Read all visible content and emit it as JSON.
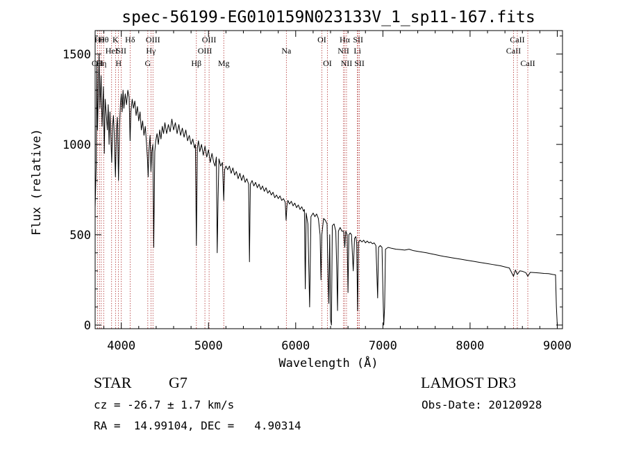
{
  "chart_data": {
    "type": "line",
    "title": "spec-56199-EG010159N023133V_1_sp11-167.fits",
    "xlabel": "Wavelength (Å)",
    "ylabel": "Flux (relative)",
    "xlim": [
      3700,
      9060
    ],
    "ylim": [
      -20,
      1630
    ],
    "xticks": [
      {
        "value": 4000,
        "label": "4000"
      },
      {
        "value": 5000,
        "label": "5000"
      },
      {
        "value": 6000,
        "label": "6000"
      },
      {
        "value": 7000,
        "label": "7000"
      },
      {
        "value": 8000,
        "label": "8000"
      },
      {
        "value": 9000,
        "label": "9000"
      }
    ],
    "yticks": [
      {
        "value": 0,
        "label": "0"
      },
      {
        "value": 500,
        "label": "500"
      },
      {
        "value": 1000,
        "label": "1000"
      },
      {
        "value": 1500,
        "label": "1500"
      }
    ],
    "series": [
      {
        "name": "spectrum",
        "color": "#000000",
        "points": [
          [
            3700,
            650
          ],
          [
            3712,
            880
          ],
          [
            3720,
            1450
          ],
          [
            3727,
            1080
          ],
          [
            3735,
            1250
          ],
          [
            3745,
            1500
          ],
          [
            3755,
            1200
          ],
          [
            3768,
            1380
          ],
          [
            3780,
            1100
          ],
          [
            3795,
            1320
          ],
          [
            3805,
            950
          ],
          [
            3815,
            1250
          ],
          [
            3830,
            1150
          ],
          [
            3840,
            1080
          ],
          [
            3850,
            1220
          ],
          [
            3860,
            1000
          ],
          [
            3870,
            1180
          ],
          [
            3880,
            1050
          ],
          [
            3890,
            900
          ],
          [
            3900,
            1100
          ],
          [
            3910,
            1160
          ],
          [
            3920,
            1050
          ],
          [
            3933,
            820
          ],
          [
            3945,
            1080
          ],
          [
            3955,
            1150
          ],
          [
            3968,
            800
          ],
          [
            3980,
            1100
          ],
          [
            3990,
            1220
          ],
          [
            4000,
            1280
          ],
          [
            4010,
            1180
          ],
          [
            4020,
            1300
          ],
          [
            4030,
            1200
          ],
          [
            4045,
            1280
          ],
          [
            4060,
            1220
          ],
          [
            4075,
            1300
          ],
          [
            4090,
            1260
          ],
          [
            4101,
            1020
          ],
          [
            4110,
            1180
          ],
          [
            4125,
            1250
          ],
          [
            4140,
            1200
          ],
          [
            4155,
            1240
          ],
          [
            4170,
            1160
          ],
          [
            4185,
            1210
          ],
          [
            4200,
            1130
          ],
          [
            4215,
            1180
          ],
          [
            4230,
            1080
          ],
          [
            4245,
            1130
          ],
          [
            4260,
            1050
          ],
          [
            4275,
            1100
          ],
          [
            4290,
            1000
          ],
          [
            4300,
            920
          ],
          [
            4308,
            820
          ],
          [
            4316,
            960
          ],
          [
            4330,
            1050
          ],
          [
            4340,
            850
          ],
          [
            4350,
            960
          ],
          [
            4362,
            1000
          ],
          [
            4372,
            430
          ],
          [
            4384,
            960
          ],
          [
            4395,
            1020
          ],
          [
            4410,
            1060
          ],
          [
            4425,
            1000
          ],
          [
            4440,
            1080
          ],
          [
            4455,
            1030
          ],
          [
            4470,
            1100
          ],
          [
            4485,
            1060
          ],
          [
            4500,
            1120
          ],
          [
            4520,
            1060
          ],
          [
            4540,
            1110
          ],
          [
            4560,
            1070
          ],
          [
            4580,
            1140
          ],
          [
            4600,
            1080
          ],
          [
            4620,
            1120
          ],
          [
            4640,
            1060
          ],
          [
            4660,
            1110
          ],
          [
            4680,
            1050
          ],
          [
            4700,
            1090
          ],
          [
            4720,
            1040
          ],
          [
            4740,
            1080
          ],
          [
            4760,
            1020
          ],
          [
            4780,
            1050
          ],
          [
            4800,
            1000
          ],
          [
            4820,
            1030
          ],
          [
            4840,
            980
          ],
          [
            4850,
            1000
          ],
          [
            4861,
            440
          ],
          [
            4872,
            980
          ],
          [
            4885,
            1020
          ],
          [
            4900,
            960
          ],
          [
            4920,
            1000
          ],
          [
            4940,
            940
          ],
          [
            4960,
            990
          ],
          [
            4980,
            930
          ],
          [
            5000,
            970
          ],
          [
            5020,
            900
          ],
          [
            5040,
            950
          ],
          [
            5060,
            900
          ],
          [
            5075,
            880
          ],
          [
            5090,
            930
          ],
          [
            5100,
            400
          ],
          [
            5110,
            700
          ],
          [
            5120,
            920
          ],
          [
            5140,
            880
          ],
          [
            5160,
            900
          ],
          [
            5175,
            690
          ],
          [
            5185,
            860
          ],
          [
            5200,
            880
          ],
          [
            5220,
            860
          ],
          [
            5240,
            880
          ],
          [
            5260,
            840
          ],
          [
            5280,
            870
          ],
          [
            5300,
            830
          ],
          [
            5320,
            850
          ],
          [
            5340,
            810
          ],
          [
            5360,
            840
          ],
          [
            5380,
            800
          ],
          [
            5400,
            830
          ],
          [
            5420,
            790
          ],
          [
            5440,
            810
          ],
          [
            5460,
            780
          ],
          [
            5470,
            350
          ],
          [
            5480,
            780
          ],
          [
            5500,
            800
          ],
          [
            5520,
            770
          ],
          [
            5540,
            790
          ],
          [
            5560,
            760
          ],
          [
            5580,
            780
          ],
          [
            5600,
            750
          ],
          [
            5620,
            770
          ],
          [
            5640,
            740
          ],
          [
            5660,
            760
          ],
          [
            5680,
            730
          ],
          [
            5700,
            745
          ],
          [
            5720,
            720
          ],
          [
            5740,
            735
          ],
          [
            5760,
            705
          ],
          [
            5780,
            720
          ],
          [
            5800,
            700
          ],
          [
            5820,
            715
          ],
          [
            5840,
            690
          ],
          [
            5860,
            700
          ],
          [
            5880,
            680
          ],
          [
            5890,
            580
          ],
          [
            5900,
            660
          ],
          [
            5910,
            690
          ],
          [
            5930,
            670
          ],
          [
            5950,
            685
          ],
          [
            5970,
            660
          ],
          [
            5990,
            675
          ],
          [
            6010,
            650
          ],
          [
            6030,
            665
          ],
          [
            6050,
            640
          ],
          [
            6070,
            655
          ],
          [
            6090,
            630
          ],
          [
            6100,
            640
          ],
          [
            6110,
            200
          ],
          [
            6120,
            620
          ],
          [
            6140,
            560
          ],
          [
            6160,
            100
          ],
          [
            6175,
            600
          ],
          [
            6200,
            620
          ],
          [
            6220,
            600
          ],
          [
            6240,
            615
          ],
          [
            6260,
            590
          ],
          [
            6280,
            500
          ],
          [
            6290,
            250
          ],
          [
            6300,
            500
          ],
          [
            6320,
            590
          ],
          [
            6340,
            580
          ],
          [
            6360,
            560
          ],
          [
            6370,
            280
          ],
          [
            6380,
            120
          ],
          [
            6390,
            500
          ],
          [
            6400,
            30
          ],
          [
            6410,
            0
          ],
          [
            6420,
            550
          ],
          [
            6440,
            560
          ],
          [
            6460,
            520
          ],
          [
            6470,
            330
          ],
          [
            6480,
            80
          ],
          [
            6490,
            520
          ],
          [
            6510,
            540
          ],
          [
            6530,
            520
          ],
          [
            6550,
            520
          ],
          [
            6563,
            430
          ],
          [
            6575,
            520
          ],
          [
            6590,
            500
          ],
          [
            6600,
            180
          ],
          [
            6610,
            500
          ],
          [
            6625,
            510
          ],
          [
            6640,
            500
          ],
          [
            6660,
            300
          ],
          [
            6675,
            480
          ],
          [
            6690,
            490
          ],
          [
            6700,
            450
          ],
          [
            6710,
            80
          ],
          [
            6720,
            460
          ],
          [
            6740,
            470
          ],
          [
            6760,
            460
          ],
          [
            6780,
            470
          ],
          [
            6800,
            455
          ],
          [
            6820,
            465
          ],
          [
            6840,
            455
          ],
          [
            6860,
            460
          ],
          [
            6880,
            450
          ],
          [
            6900,
            455
          ],
          [
            6920,
            440
          ],
          [
            6930,
            300
          ],
          [
            6940,
            150
          ],
          [
            6950,
            430
          ],
          [
            6970,
            440
          ],
          [
            6990,
            430
          ],
          [
            7000,
            200
          ],
          [
            7010,
            0
          ],
          [
            7020,
            100
          ],
          [
            7030,
            420
          ],
          [
            7060,
            430
          ],
          [
            7100,
            425
          ],
          [
            7150,
            420
          ],
          [
            7200,
            418
          ],
          [
            7250,
            415
          ],
          [
            7300,
            420
          ],
          [
            7350,
            412
          ],
          [
            7400,
            408
          ],
          [
            7450,
            404
          ],
          [
            7500,
            400
          ],
          [
            7550,
            395
          ],
          [
            7600,
            390
          ],
          [
            7650,
            385
          ],
          [
            7700,
            380
          ],
          [
            7750,
            376
          ],
          [
            7800,
            372
          ],
          [
            7850,
            368
          ],
          [
            7900,
            364
          ],
          [
            7950,
            360
          ],
          [
            8000,
            356
          ],
          [
            8050,
            352
          ],
          [
            8100,
            348
          ],
          [
            8150,
            344
          ],
          [
            8200,
            340
          ],
          [
            8250,
            336
          ],
          [
            8300,
            332
          ],
          [
            8350,
            328
          ],
          [
            8400,
            322
          ],
          [
            8450,
            316
          ],
          [
            8498,
            270
          ],
          [
            8520,
            305
          ],
          [
            8542,
            280
          ],
          [
            8570,
            300
          ],
          [
            8600,
            298
          ],
          [
            8640,
            290
          ],
          [
            8662,
            270
          ],
          [
            8690,
            292
          ],
          [
            8750,
            290
          ],
          [
            8800,
            288
          ],
          [
            8850,
            286
          ],
          [
            8900,
            285
          ],
          [
            8950,
            280
          ],
          [
            8980,
            278
          ],
          [
            8990,
            100
          ],
          [
            9000,
            0
          ]
        ]
      }
    ],
    "line_markers": [
      {
        "wavelength": 3727,
        "label": "OII",
        "row": 3
      },
      {
        "wavelength": 3750,
        "label": "Hθ",
        "row": 1
      },
      {
        "wavelength": 3771,
        "label": "Hη",
        "row": 3
      },
      {
        "wavelength": 3798,
        "label": "Hθ",
        "row": 1
      },
      {
        "wavelength": 3889,
        "label": "HeI",
        "row": 2
      },
      {
        "wavelength": 3934,
        "label": "K",
        "row": 1
      },
      {
        "wavelength": 3968,
        "label": "H",
        "row": 3
      },
      {
        "wavelength": 4000,
        "label": "SII",
        "row": 2
      },
      {
        "wavelength": 4101,
        "label": "Hδ",
        "row": 1
      },
      {
        "wavelength": 4304,
        "label": "G",
        "row": 3
      },
      {
        "wavelength": 4340,
        "label": "Hγ",
        "row": 2
      },
      {
        "wavelength": 4363,
        "label": "OIII",
        "row": 1
      },
      {
        "wavelength": 4861,
        "label": "Hβ",
        "row": 3
      },
      {
        "wavelength": 4959,
        "label": "OIII",
        "row": 2
      },
      {
        "wavelength": 5007,
        "label": "OIII",
        "row": 1
      },
      {
        "wavelength": 5175,
        "label": "Mg",
        "row": 3
      },
      {
        "wavelength": 5893,
        "label": "Na",
        "row": 2
      },
      {
        "wavelength": 6300,
        "label": "OI",
        "row": 1
      },
      {
        "wavelength": 6364,
        "label": "OI",
        "row": 3
      },
      {
        "wavelength": 6548,
        "label": "NII",
        "row": 2
      },
      {
        "wavelength": 6563,
        "label": "Hα",
        "row": 1
      },
      {
        "wavelength": 6583,
        "label": "NII",
        "row": 3
      },
      {
        "wavelength": 6708,
        "label": "Li",
        "row": 2
      },
      {
        "wavelength": 6716,
        "label": "SII",
        "row": 1
      },
      {
        "wavelength": 6731,
        "label": "SII",
        "row": 3
      },
      {
        "wavelength": 8498,
        "label": "CaII",
        "row": 2
      },
      {
        "wavelength": 8542,
        "label": "CaII",
        "row": 1
      },
      {
        "wavelength": 8662,
        "label": "CaII",
        "row": 3
      }
    ],
    "marker_color": "#b03030",
    "grid": false
  },
  "info": {
    "object_class": "STAR",
    "subclass": "G7",
    "survey": "LAMOST DR3",
    "redshift": "cz = -26.7 ± 1.7 km/s",
    "obs_date": "Obs-Date: 20120928",
    "coords": "RA =  14.99104, DEC =   4.90314"
  }
}
